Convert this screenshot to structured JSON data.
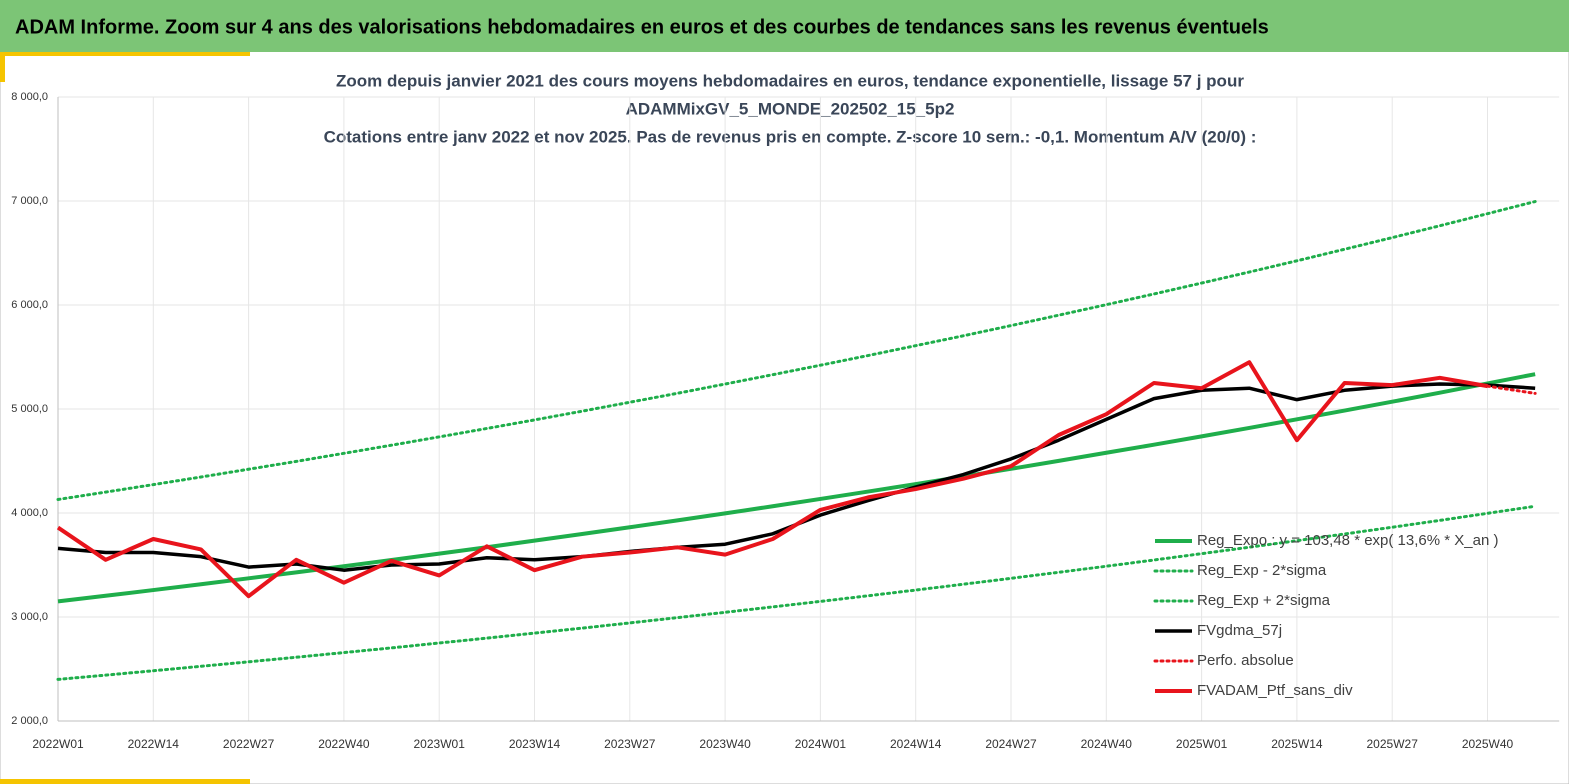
{
  "banner": {
    "title": "ADAM Informe. Zoom sur 4 ans des valorisations hebdomadaires en euros et des courbes de tendances sans les revenus éventuels"
  },
  "chart_data": {
    "type": "line",
    "title": [
      "Zoom depuis janvier 2021 des cours moyens hebdomadaires  en euros, tendance exponentielle, lissage 57 j pour",
      "ADAMMixGV_5_MONDE_202502_15_5p2",
      "Cotations entre janv 2022 et nov 2025. Pas de revenus pris en compte. Z-score 10 sem.: -0,1. Momentum A/V (20/0) :"
    ],
    "categories": [
      "2022W01",
      null,
      "2022W14",
      null,
      "2022W27",
      null,
      "2022W40",
      null,
      "2023W01",
      null,
      "2023W14",
      null,
      "2023W27",
      null,
      "2023W40",
      null,
      "2024W01",
      null,
      "2024W14",
      null,
      "2024W27",
      null,
      "2024W40",
      null,
      "2025W01",
      null,
      "2025W14",
      null,
      "2025W27",
      null,
      "2025W40",
      null
    ],
    "ylim": [
      2000,
      8000
    ],
    "yticks": [
      {
        "value": 2000,
        "label": "2 000,0"
      },
      {
        "value": 3000,
        "label": "3 000,0"
      },
      {
        "value": 4000,
        "label": "4 000,0"
      },
      {
        "value": 5000,
        "label": "5 000,0"
      },
      {
        "value": 6000,
        "label": "6 000,0"
      },
      {
        "value": 7000,
        "label": "7 000,0"
      },
      {
        "value": 8000,
        "label": "8 000,0"
      }
    ],
    "grid": true,
    "legend": "lower right",
    "series": [
      {
        "name": "Reg_Expo : y = 103,48 * exp( 13,6% *  X_an )",
        "color": "#1fae4b",
        "line_style": "solid",
        "values": [
          3150,
          3204,
          3259,
          3315,
          3372,
          3429,
          3488,
          3548,
          3609,
          3671,
          3734,
          3798,
          3863,
          3929,
          3996,
          4065,
          4135,
          4206,
          4278,
          4351,
          4425,
          4501,
          4579,
          4657,
          4737,
          4818,
          4901,
          4985,
          5070,
          5157,
          5246,
          5335
        ]
      },
      {
        "name": "Reg_Exp - 2*sigma",
        "color": "#1fae4b",
        "line_style": "dotted",
        "values": [
          2400,
          2441,
          2483,
          2526,
          2569,
          2613,
          2658,
          2703,
          2750,
          2797,
          2845,
          2893,
          2943,
          2994,
          3045,
          3097,
          3150,
          3204,
          3259,
          3315,
          3372,
          3430,
          3488,
          3548,
          3609,
          3671,
          3734,
          3798,
          3863,
          3929,
          3997,
          4065
        ]
      },
      {
        "name": "Reg_Exp + 2*sigma",
        "color": "#1fae4b",
        "line_style": "dotted",
        "values": [
          4130,
          4201,
          4273,
          4346,
          4421,
          4496,
          4574,
          4652,
          4732,
          4813,
          4895,
          4979,
          5065,
          5151,
          5240,
          5330,
          5421,
          5514,
          5609,
          5704,
          5802,
          5902,
          6003,
          6106,
          6211,
          6317,
          6425,
          6536,
          6648,
          6762,
          6878,
          6995
        ]
      },
      {
        "name": "FVgdma_57j",
        "color": "#000000",
        "line_style": "solid",
        "values": [
          3660,
          3620,
          3620,
          3580,
          3480,
          3510,
          3450,
          3500,
          3510,
          3570,
          3550,
          3580,
          3630,
          3670,
          3700,
          3800,
          3980,
          4120,
          4250,
          4370,
          4520,
          4700,
          4900,
          5100,
          5180,
          5200,
          5090,
          5180,
          5220,
          5240,
          5230,
          5200
        ]
      },
      {
        "name": "Perfo. absolue",
        "color": "#e8141c",
        "line_style": "dotted",
        "values": [
          null,
          null,
          null,
          null,
          null,
          null,
          null,
          null,
          null,
          null,
          null,
          null,
          null,
          null,
          null,
          null,
          null,
          null,
          null,
          null,
          null,
          null,
          null,
          null,
          null,
          null,
          null,
          null,
          null,
          null,
          5220,
          5150
        ]
      },
      {
        "name": "FVADAM_Ptf_sans_div",
        "color": "#e8141c",
        "line_style": "solid",
        "values": [
          3860,
          3550,
          3750,
          3650,
          3200,
          3550,
          3330,
          3540,
          3400,
          3680,
          3450,
          3580,
          3620,
          3670,
          3600,
          3750,
          4030,
          4150,
          4230,
          4330,
          4450,
          4750,
          4950,
          5250,
          5200,
          5450,
          4700,
          5250,
          5230,
          5300,
          5220,
          null
        ]
      }
    ]
  }
}
